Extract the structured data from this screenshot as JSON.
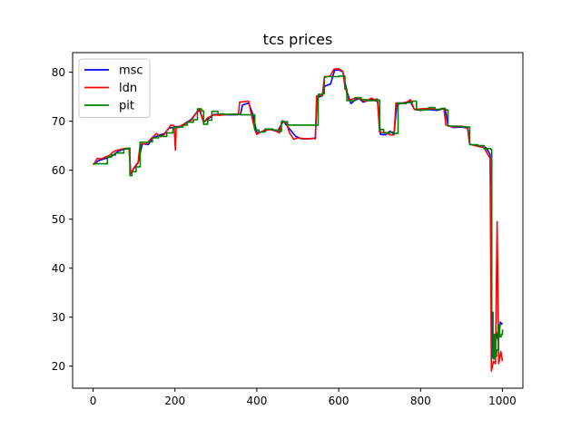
{
  "chart_data": {
    "type": "line",
    "title": "tcs prices",
    "xlabel": "",
    "ylabel": "",
    "xlim": [
      -50,
      1050
    ],
    "ylim": [
      15.5,
      84
    ],
    "xticks": [
      0,
      200,
      400,
      600,
      800,
      1000
    ],
    "yticks": [
      20,
      30,
      40,
      50,
      60,
      70,
      80
    ],
    "grid": false,
    "legend": "top-left",
    "series": [
      {
        "name": "msc",
        "color": "#0000ff",
        "step": false,
        "points": [
          [
            0,
            61.2
          ],
          [
            15,
            62
          ],
          [
            30,
            62.4
          ],
          [
            45,
            62.8
          ],
          [
            60,
            63.8
          ],
          [
            75,
            64.3
          ],
          [
            88,
            64.4
          ],
          [
            92,
            59.4
          ],
          [
            100,
            60.4
          ],
          [
            110,
            61.5
          ],
          [
            120,
            65.4
          ],
          [
            135,
            65.2
          ],
          [
            145,
            66.5
          ],
          [
            160,
            67.1
          ],
          [
            175,
            67.5
          ],
          [
            185,
            68.6
          ],
          [
            200,
            68.8
          ],
          [
            215,
            69
          ],
          [
            225,
            69.6
          ],
          [
            240,
            70.4
          ],
          [
            250,
            71.5
          ],
          [
            260,
            72.3
          ],
          [
            270,
            69.8
          ],
          [
            280,
            70.4
          ],
          [
            295,
            71.4
          ],
          [
            320,
            71.3
          ],
          [
            350,
            71.3
          ],
          [
            360,
            71.4
          ],
          [
            365,
            73.3
          ],
          [
            380,
            73.7
          ],
          [
            390,
            71.5
          ],
          [
            400,
            67.7
          ],
          [
            415,
            67.8
          ],
          [
            430,
            68.4
          ],
          [
            450,
            67.9
          ],
          [
            465,
            70
          ],
          [
            480,
            68.4
          ],
          [
            495,
            66.9
          ],
          [
            510,
            66.4
          ],
          [
            530,
            66.4
          ],
          [
            543,
            66.6
          ],
          [
            547,
            74.8
          ],
          [
            560,
            75.2
          ],
          [
            565,
            77.1
          ],
          [
            580,
            77.6
          ],
          [
            590,
            80.4
          ],
          [
            600,
            80.5
          ],
          [
            610,
            80.1
          ],
          [
            620,
            76.1
          ],
          [
            630,
            73.6
          ],
          [
            640,
            74.3
          ],
          [
            650,
            74.6
          ],
          [
            660,
            73.9
          ],
          [
            680,
            74.5
          ],
          [
            695,
            74
          ],
          [
            702,
            67.3
          ],
          [
            715,
            67.2
          ],
          [
            725,
            68
          ],
          [
            735,
            67.3
          ],
          [
            742,
            73.4
          ],
          [
            760,
            73.8
          ],
          [
            775,
            74
          ],
          [
            785,
            72.4
          ],
          [
            800,
            72.2
          ],
          [
            820,
            72.4
          ],
          [
            840,
            72.2
          ],
          [
            860,
            72.6
          ],
          [
            867,
            69.1
          ],
          [
            880,
            68.7
          ],
          [
            900,
            68.8
          ],
          [
            915,
            68.6
          ],
          [
            920,
            65.3
          ],
          [
            940,
            64.9
          ],
          [
            960,
            64.6
          ],
          [
            970,
            63.2
          ],
          [
            975,
            22
          ],
          [
            980,
            21.5
          ],
          [
            985,
            27
          ],
          [
            990,
            25
          ],
          [
            995,
            29
          ],
          [
            1000,
            28.5
          ]
        ]
      },
      {
        "name": "ldn",
        "color": "#ff0000",
        "step": false,
        "points": [
          [
            0,
            61.1
          ],
          [
            5,
            61.6
          ],
          [
            10,
            62.4
          ],
          [
            20,
            62.3
          ],
          [
            30,
            62.7
          ],
          [
            40,
            63
          ],
          [
            50,
            63.8
          ],
          [
            60,
            64.1
          ],
          [
            75,
            64.4
          ],
          [
            88,
            64.5
          ],
          [
            92,
            59.3
          ],
          [
            100,
            60.5
          ],
          [
            110,
            61.6
          ],
          [
            115,
            65.3
          ],
          [
            130,
            65.4
          ],
          [
            140,
            66.3
          ],
          [
            155,
            67.5
          ],
          [
            165,
            66.8
          ],
          [
            175,
            67.4
          ],
          [
            190,
            69.2
          ],
          [
            198,
            69.1
          ],
          [
            201,
            64.1
          ],
          [
            203,
            68.7
          ],
          [
            210,
            68.9
          ],
          [
            225,
            69.5
          ],
          [
            240,
            70.2
          ],
          [
            250,
            71.5
          ],
          [
            260,
            72.6
          ],
          [
            270,
            69.7
          ],
          [
            280,
            70.7
          ],
          [
            295,
            71.3
          ],
          [
            310,
            71.2
          ],
          [
            330,
            71.4
          ],
          [
            350,
            71.4
          ],
          [
            355,
            71.4
          ],
          [
            358,
            73.9
          ],
          [
            380,
            74.1
          ],
          [
            386,
            71.6
          ],
          [
            395,
            68.3
          ],
          [
            400,
            67.3
          ],
          [
            410,
            67.8
          ],
          [
            420,
            68.2
          ],
          [
            440,
            68.3
          ],
          [
            455,
            67.6
          ],
          [
            462,
            70.1
          ],
          [
            472,
            69.6
          ],
          [
            480,
            67.6
          ],
          [
            490,
            66.3
          ],
          [
            500,
            66.6
          ],
          [
            520,
            66.4
          ],
          [
            535,
            66.5
          ],
          [
            543,
            66.4
          ],
          [
            546,
            75.1
          ],
          [
            560,
            75.3
          ],
          [
            565,
            78.9
          ],
          [
            580,
            79.3
          ],
          [
            588,
            80.6
          ],
          [
            600,
            80.7
          ],
          [
            610,
            80.2
          ],
          [
            615,
            77.1
          ],
          [
            625,
            74.3
          ],
          [
            640,
            74.7
          ],
          [
            650,
            74.6
          ],
          [
            665,
            74
          ],
          [
            680,
            74.7
          ],
          [
            695,
            74.1
          ],
          [
            700,
            67.7
          ],
          [
            715,
            67.7
          ],
          [
            725,
            67.2
          ],
          [
            735,
            67.2
          ],
          [
            740,
            73.7
          ],
          [
            755,
            73.7
          ],
          [
            765,
            73.8
          ],
          [
            775,
            74.4
          ],
          [
            785,
            72.4
          ],
          [
            800,
            72.5
          ],
          [
            820,
            72.6
          ],
          [
            840,
            72.4
          ],
          [
            857,
            72.5
          ],
          [
            862,
            69.2
          ],
          [
            880,
            68.8
          ],
          [
            900,
            69
          ],
          [
            915,
            68.6
          ],
          [
            920,
            65.3
          ],
          [
            940,
            64.9
          ],
          [
            955,
            64.6
          ],
          [
            970,
            62.4
          ],
          [
            973,
            19
          ],
          [
            978,
            21
          ],
          [
            983,
            20.5
          ],
          [
            987,
            49.5
          ],
          [
            991,
            20.5
          ],
          [
            996,
            23
          ],
          [
            1000,
            21
          ]
        ]
      },
      {
        "name": "pit",
        "color": "#008000",
        "step": true,
        "points": [
          [
            0,
            61.3
          ],
          [
            20,
            61.3
          ],
          [
            35,
            62.7
          ],
          [
            45,
            63.1
          ],
          [
            55,
            63.5
          ],
          [
            75,
            64.4
          ],
          [
            88,
            64.5
          ],
          [
            90,
            58.9
          ],
          [
            95,
            59.7
          ],
          [
            105,
            60.7
          ],
          [
            115,
            65.7
          ],
          [
            135,
            65.8
          ],
          [
            145,
            66.6
          ],
          [
            160,
            67
          ],
          [
            170,
            66.9
          ],
          [
            180,
            67.6
          ],
          [
            195,
            68.7
          ],
          [
            210,
            68.8
          ],
          [
            220,
            69.2
          ],
          [
            230,
            69.8
          ],
          [
            245,
            70.3
          ],
          [
            255,
            72.5
          ],
          [
            265,
            72.1
          ],
          [
            270,
            69.4
          ],
          [
            280,
            70.2
          ],
          [
            290,
            72
          ],
          [
            305,
            71.5
          ],
          [
            320,
            71.4
          ],
          [
            345,
            71.4
          ],
          [
            360,
            71.3
          ],
          [
            395,
            68.2
          ],
          [
            405,
            67.8
          ],
          [
            420,
            68.4
          ],
          [
            440,
            68.2
          ],
          [
            455,
            67.9
          ],
          [
            460,
            69.9
          ],
          [
            475,
            69.2
          ],
          [
            545,
            69.2
          ],
          [
            550,
            75.5
          ],
          [
            560,
            75.6
          ],
          [
            565,
            79.1
          ],
          [
            600,
            79.2
          ],
          [
            615,
            76.6
          ],
          [
            620,
            74.2
          ],
          [
            640,
            74.8
          ],
          [
            655,
            74.4
          ],
          [
            670,
            74.2
          ],
          [
            690,
            74.5
          ],
          [
            695,
            74.3
          ],
          [
            700,
            68.3
          ],
          [
            710,
            67.6
          ],
          [
            725,
            67.8
          ],
          [
            735,
            67.5
          ],
          [
            745,
            73.7
          ],
          [
            755,
            73.6
          ],
          [
            765,
            73.8
          ],
          [
            780,
            74.1
          ],
          [
            790,
            72.3
          ],
          [
            810,
            72.3
          ],
          [
            820,
            72.8
          ],
          [
            835,
            72.4
          ],
          [
            850,
            72.6
          ],
          [
            860,
            72.3
          ],
          [
            867,
            69
          ],
          [
            880,
            69
          ],
          [
            895,
            68.9
          ],
          [
            910,
            68.8
          ],
          [
            920,
            65.2
          ],
          [
            940,
            65
          ],
          [
            955,
            64.4
          ],
          [
            972,
            64.2
          ],
          [
            974,
            31
          ],
          [
            977,
            21.5
          ],
          [
            980,
            26.5
          ],
          [
            983,
            22
          ],
          [
            986,
            23.3
          ],
          [
            990,
            28.5
          ],
          [
            993,
            26
          ],
          [
            997,
            26.5
          ],
          [
            1000,
            27.5
          ]
        ]
      }
    ]
  }
}
